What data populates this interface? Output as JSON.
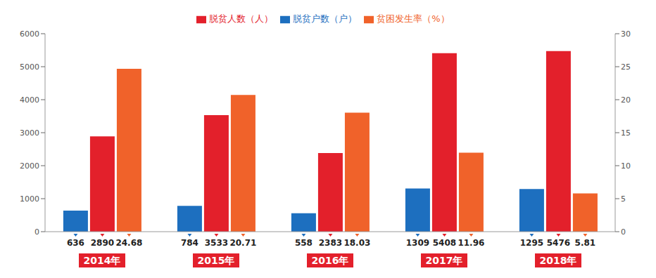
{
  "chart_data": {
    "type": "bar",
    "categories": [
      "2014年",
      "2015年",
      "2016年",
      "2017年",
      "2018年"
    ],
    "series": [
      {
        "name": "脱贫户数（户）",
        "color": "#1d6fbf",
        "values": [
          636,
          784,
          558,
          1309,
          1295
        ]
      },
      {
        "name": "脱贫人数（人）",
        "color": "#e3202b",
        "values": [
          2890,
          3533,
          2383,
          5408,
          5476
        ]
      },
      {
        "name": "贫困发生率（%）",
        "color": "#f0622a",
        "values": [
          24.68,
          20.71,
          18.03,
          11.96,
          5.81
        ],
        "axis": "y2"
      }
    ],
    "ylim": [
      0,
      6000
    ],
    "yticks": [
      0,
      1000,
      2000,
      3000,
      4000,
      5000,
      6000
    ],
    "y2lim": [
      0,
      30
    ],
    "y2ticks": [
      0,
      5,
      10,
      15,
      20,
      25,
      30
    ],
    "data_labels": true,
    "legend": "top"
  }
}
